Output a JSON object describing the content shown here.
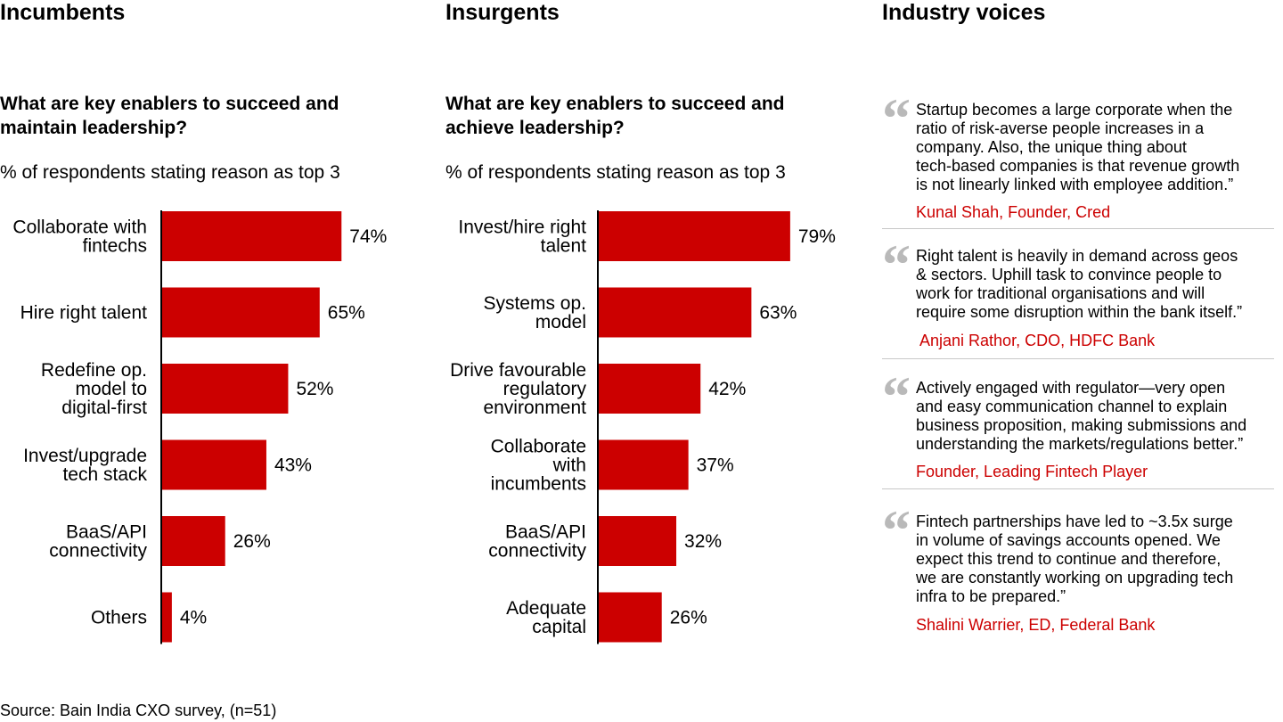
{
  "chart_data": [
    {
      "type": "bar",
      "orientation": "horizontal",
      "title": "Incumbents",
      "question": "What are key enablers to succeed and\nmaintain leadership?",
      "subtitle": "% of respondents stating reason as top 3",
      "categories": [
        "Collaborate with\nfintechs",
        "Hire right talent",
        "Redefine op.\nmodel to\ndigital-first",
        "Invest/upgrade\ntech stack",
        "BaaS/API\nconnectivity",
        "Others"
      ],
      "values": [
        74,
        65,
        52,
        43,
        26,
        4
      ],
      "value_labels": [
        "74%",
        "65%",
        "52%",
        "43%",
        "26%",
        "4%"
      ],
      "xlim": [
        0,
        100
      ],
      "bar_color": "#cc0000"
    },
    {
      "type": "bar",
      "orientation": "horizontal",
      "title": "Insurgents",
      "question": "What are key enablers to succeed and\nachieve leadership?",
      "subtitle": "% of respondents stating reason as top 3",
      "categories": [
        "Invest/hire right\ntalent",
        "Systems op.\nmodel",
        "Drive favourable\nregulatory\nenvironment",
        "Collaborate\nwith\nincumbents",
        "BaaS/API\nconnectivity",
        "Adequate\ncapital"
      ],
      "values": [
        79,
        63,
        42,
        37,
        32,
        26
      ],
      "value_labels": [
        "79%",
        "63%",
        "42%",
        "37%",
        "32%",
        "26%"
      ],
      "xlim": [
        0,
        100
      ],
      "bar_color": "#cc0000"
    }
  ],
  "voices": {
    "title": "Industry voices",
    "quote_mark": "“",
    "quotes": [
      {
        "text": "Startup becomes a large corporate when the\nratio of risk-averse people increases in a\ncompany. Also, the unique thing about\ntech-based companies is that revenue growth\nis not linearly linked with employee addition.”",
        "author": "Kunal Shah, Founder, Cred"
      },
      {
        "text": "Right talent is heavily in demand across geos\n& sectors. Uphill task to convince people to\nwork for traditional organisations and will\nrequire some disruption within the bank itself.”",
        "author": "Anjani Rathor, CDO, HDFC Bank"
      },
      {
        "text": "Actively engaged with regulator—very open\nand easy communication channel to explain\nbusiness proposition, making submissions and\nunderstanding the markets/regulations better.”",
        "author": "Founder, Leading Fintech Player"
      },
      {
        "text": "Fintech partnerships have led to ~3.5x surge\nin volume of savings accounts opened. We\nexpect this trend to continue and therefore,\nwe are constantly working on upgrading tech\ninfra to be prepared.”",
        "author": "Shalini Warrier, ED, Federal Bank"
      }
    ]
  },
  "source": "Source: Bain India CXO survey, (n=51)"
}
